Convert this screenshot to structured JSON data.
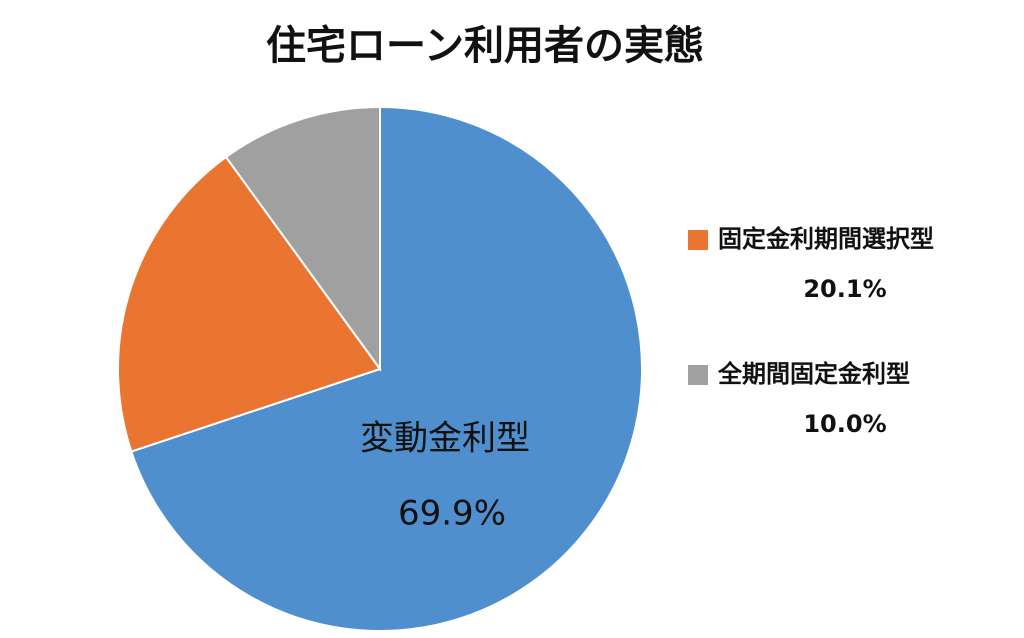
{
  "chart_data": {
    "type": "pie",
    "title": "住宅ローン利用者の実態",
    "categories": [
      "変動金利型",
      "固定金利期間選択型",
      "全期間固定金利型"
    ],
    "values": [
      69.9,
      20.1,
      10.0
    ],
    "value_labels": [
      "69.9%",
      "20.1%",
      "10.0%"
    ],
    "colors": [
      "#4f8fcd",
      "#ea7530",
      "#a0a0a0"
    ]
  }
}
